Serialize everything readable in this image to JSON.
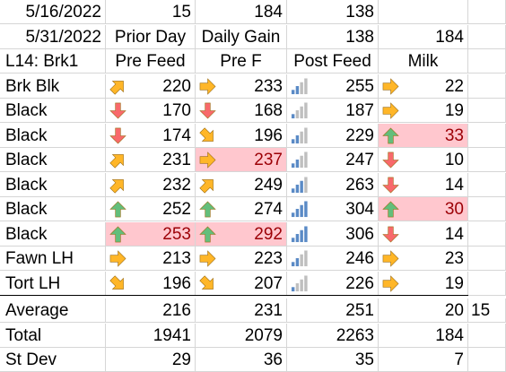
{
  "header_rows": [
    [
      "5/16/2022",
      "15",
      "184",
      "138",
      "",
      ""
    ],
    [
      "5/31/2022",
      "Prior Day",
      "Daily Gain",
      "138",
      "184",
      ""
    ],
    [
      "L14: Brk1",
      "Pre Feed",
      "Pre F",
      "Post Feed",
      "Milk",
      ""
    ]
  ],
  "data_rows": [
    {
      "name": "Brk Blk",
      "v1": "220",
      "i1": "up-right",
      "v2": "233",
      "i2": "right",
      "v3": "255",
      "b3": 0.5,
      "v4": "22",
      "i4": "right",
      "p2": false,
      "p4": false,
      "p1": false
    },
    {
      "name": "Black",
      "v1": "170",
      "i1": "down",
      "v2": "168",
      "i2": "down",
      "v3": "187",
      "b3": 0.25,
      "v4": "19",
      "i4": "right",
      "p2": false,
      "p4": false,
      "p1": false
    },
    {
      "name": "Black",
      "v1": "174",
      "i1": "down",
      "v2": "196",
      "i2": "down-right",
      "v3": "229",
      "b3": 0.5,
      "v4": "33",
      "i4": "up",
      "p2": false,
      "p4": true,
      "p1": false
    },
    {
      "name": "Black",
      "v1": "231",
      "i1": "up-right",
      "v2": "237",
      "i2": "right",
      "v3": "247",
      "b3": 0.5,
      "v4": "10",
      "i4": "down",
      "p2": true,
      "p4": false,
      "p1": false
    },
    {
      "name": "Black",
      "v1": "232",
      "i1": "up-right",
      "v2": "249",
      "i2": "up-right",
      "v3": "263",
      "b3": 0.75,
      "v4": "14",
      "i4": "down",
      "p2": false,
      "p4": false,
      "p1": false
    },
    {
      "name": "Black",
      "v1": "252",
      "i1": "up",
      "v2": "274",
      "i2": "up",
      "v3": "304",
      "b3": 1.0,
      "v4": "30",
      "i4": "up",
      "p2": false,
      "p4": true,
      "p1": false
    },
    {
      "name": "Black",
      "v1": "253",
      "i1": "up",
      "v2": "292",
      "i2": "up",
      "v3": "306",
      "b3": 1.0,
      "v4": "14",
      "i4": "down",
      "p2": true,
      "p4": false,
      "p1": true
    },
    {
      "name": "Fawn LH",
      "v1": "213",
      "i1": "right",
      "v2": "223",
      "i2": "right",
      "v3": "246",
      "b3": 0.5,
      "v4": "23",
      "i4": "right",
      "p2": false,
      "p4": false,
      "p1": false
    },
    {
      "name": "Tort LH",
      "v1": "196",
      "i1": "down-right",
      "v2": "207",
      "i2": "down-right",
      "v3": "226",
      "b3": 0.25,
      "v4": "19",
      "i4": "right",
      "p2": false,
      "p4": false,
      "p1": false
    }
  ],
  "summary_rows": [
    [
      "Average",
      "216",
      "231",
      "251",
      "20",
      "15"
    ],
    [
      "Total",
      "1941",
      "2079",
      "2263",
      "184",
      ""
    ],
    [
      "St Dev",
      "29",
      "36",
      "35",
      "7",
      ""
    ]
  ],
  "colors": {
    "up": "#63be7b",
    "down": "#f8696b",
    "side": "#ffb628",
    "bar_on": "#5a8ac6",
    "bar_off": "#bfbfbf",
    "pink_fill": "#ffc7ce",
    "pink_text": "#9c0006"
  }
}
